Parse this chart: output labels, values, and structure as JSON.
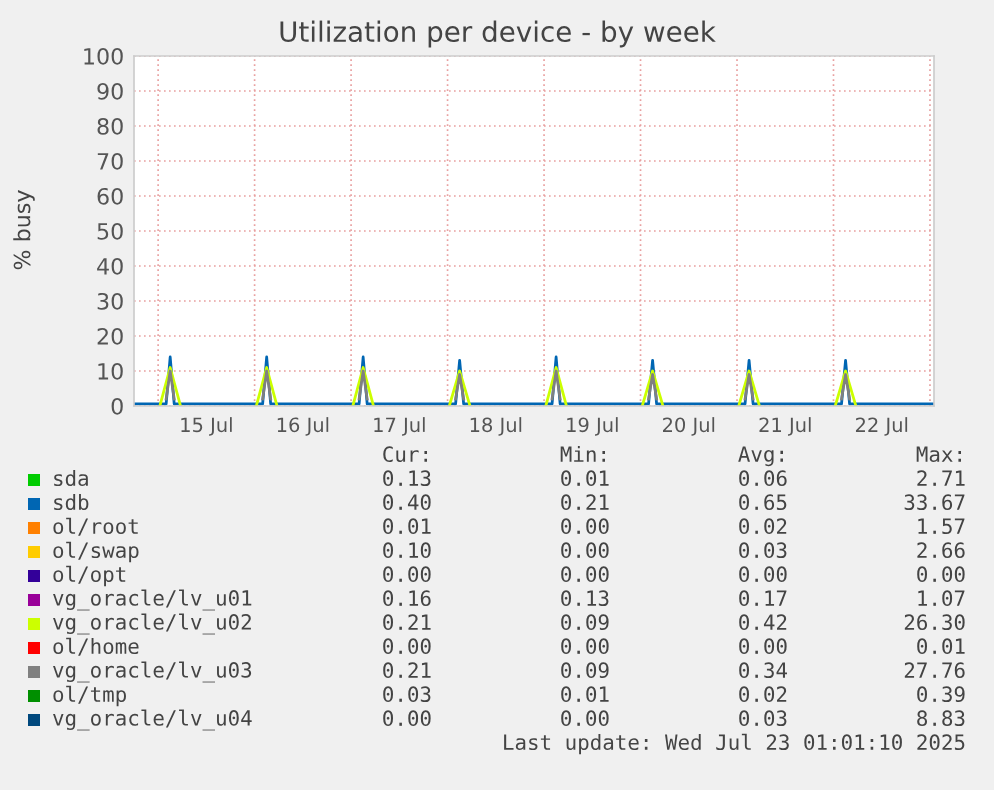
{
  "chart_data": {
    "type": "line",
    "title": "Utilization per device - by week",
    "ylabel": "% busy",
    "x": [
      "2025-07-14T18:00",
      "2025-07-15T02:00",
      "2025-07-15T03:00",
      "2025-07-15T04:00",
      "2025-07-16T02:00",
      "2025-07-16T03:00",
      "2025-07-16T04:00",
      "2025-07-17T02:00",
      "2025-07-17T03:00",
      "2025-07-17T04:00",
      "2025-07-18T02:00",
      "2025-07-18T03:00",
      "2025-07-18T04:00",
      "2025-07-19T02:00",
      "2025-07-19T03:00",
      "2025-07-19T04:00",
      "2025-07-20T02:00",
      "2025-07-20T03:00",
      "2025-07-20T04:00",
      "2025-07-21T02:00",
      "2025-07-21T03:00",
      "2025-07-21T04:00",
      "2025-07-22T02:00",
      "2025-07-22T03:00",
      "2025-07-22T04:00",
      "2025-07-23T01:00"
    ],
    "series": [
      {
        "name": "sda",
        "color": "#00cc00",
        "values": [
          null,
          null,
          null,
          null,
          null,
          null,
          null,
          null,
          null,
          null,
          null,
          null,
          null,
          null,
          null,
          null,
          null,
          null,
          null,
          null,
          null,
          null,
          null,
          null,
          null,
          null
        ]
      },
      {
        "name": "sdb",
        "color": "#0066b3",
        "values": [
          0.6,
          0.6,
          14,
          0.6,
          0.6,
          14,
          0.6,
          0.6,
          14,
          0.6,
          0.6,
          13,
          0.6,
          0.6,
          14,
          0.6,
          0.6,
          13,
          0.6,
          0.6,
          13,
          0.6,
          0.6,
          13,
          0.6,
          0.6
        ]
      },
      {
        "name": "ol/root",
        "color": "#ff8000",
        "values": [
          null,
          null,
          null,
          null,
          null,
          null,
          null,
          null,
          null,
          null,
          null,
          null,
          null,
          null,
          null,
          null,
          null,
          null,
          null,
          null,
          null,
          null,
          null,
          null,
          null,
          null
        ]
      },
      {
        "name": "ol/swap",
        "color": "#ffcc00",
        "values": [
          null,
          null,
          null,
          null,
          null,
          null,
          null,
          null,
          null,
          null,
          null,
          null,
          null,
          null,
          null,
          null,
          null,
          null,
          null,
          null,
          null,
          null,
          null,
          null,
          null,
          null
        ]
      },
      {
        "name": "ol/opt",
        "color": "#330099",
        "values": [
          null,
          null,
          null,
          null,
          null,
          null,
          null,
          null,
          null,
          null,
          null,
          null,
          null,
          null,
          null,
          null,
          null,
          null,
          null,
          null,
          null,
          null,
          null,
          null,
          null,
          null
        ]
      },
      {
        "name": "vg_oracle/lv_u01",
        "color": "#990099",
        "values": [
          null,
          null,
          null,
          null,
          null,
          null,
          null,
          null,
          null,
          null,
          null,
          null,
          null,
          null,
          null,
          null,
          null,
          null,
          null,
          null,
          null,
          null,
          null,
          null,
          null,
          null
        ]
      },
      {
        "name": "vg_oracle/lv_u02",
        "color": "#ccff00",
        "x": [
          "2025-07-15T00:30",
          "2025-07-15T03:00",
          "2025-07-15T05:30",
          "2025-07-15T12:00",
          "2025-07-16T00:30",
          "2025-07-16T03:00",
          "2025-07-16T05:30",
          "2025-07-16T12:00",
          "2025-07-17T00:30",
          "2025-07-17T03:00",
          "2025-07-17T05:30",
          "2025-07-17T12:00",
          "2025-07-18T00:30",
          "2025-07-18T03:00",
          "2025-07-18T05:30",
          "2025-07-18T12:00",
          "2025-07-19T00:30",
          "2025-07-19T03:00",
          "2025-07-19T05:30",
          "2025-07-19T12:00",
          "2025-07-20T00:30",
          "2025-07-20T03:00",
          "2025-07-20T05:30",
          "2025-07-20T12:00",
          "2025-07-21T00:30",
          "2025-07-21T03:00",
          "2025-07-21T05:30",
          "2025-07-21T12:00",
          "2025-07-22T00:30",
          "2025-07-22T03:00",
          "2025-07-22T05:30"
        ],
        "values": [
          0.3,
          11,
          0.3,
          null,
          0.3,
          11,
          0.3,
          null,
          0.3,
          11,
          0.3,
          null,
          0.3,
          10,
          0.3,
          null,
          0.3,
          11,
          0.3,
          null,
          0.3,
          10,
          0.3,
          null,
          0.3,
          10,
          0.3,
          null,
          0.3,
          10,
          0.3
        ]
      },
      {
        "name": "ol/home",
        "color": "#ff0000",
        "values": [
          null,
          null,
          null,
          null,
          null,
          null,
          null,
          null,
          null,
          null,
          null,
          null,
          null,
          null,
          null,
          null,
          null,
          null,
          null,
          null,
          null,
          null,
          null,
          null,
          null,
          null
        ]
      },
      {
        "name": "vg_oracle/lv_u03",
        "color": "#808080",
        "x": [
          "2025-07-15T02:00",
          "2025-07-15T03:00",
          "2025-07-15T04:00",
          "2025-07-15T12:00",
          "2025-07-16T02:00",
          "2025-07-16T03:00",
          "2025-07-16T04:00",
          "2025-07-16T12:00",
          "2025-07-17T02:00",
          "2025-07-17T03:00",
          "2025-07-17T04:00",
          "2025-07-17T12:00",
          "2025-07-18T02:00",
          "2025-07-18T03:00",
          "2025-07-18T04:00",
          "2025-07-18T12:00",
          "2025-07-19T02:00",
          "2025-07-19T03:00",
          "2025-07-19T04:00",
          "2025-07-19T12:00",
          "2025-07-20T02:00",
          "2025-07-20T03:00",
          "2025-07-20T04:00",
          "2025-07-20T12:00",
          "2025-07-21T02:00",
          "2025-07-21T03:00",
          "2025-07-21T04:00",
          "2025-07-21T12:00",
          "2025-07-22T02:00",
          "2025-07-22T03:00",
          "2025-07-22T04:00"
        ],
        "values": [
          2,
          10,
          2,
          null,
          2,
          10,
          2,
          null,
          2,
          10,
          2,
          null,
          2,
          9,
          2,
          null,
          2,
          10,
          2,
          null,
          2,
          9,
          2,
          null,
          2,
          9,
          2,
          null,
          2,
          9,
          2
        ]
      },
      {
        "name": "ol/tmp",
        "color": "#008f00",
        "values": [
          null,
          null,
          null,
          null,
          null,
          null,
          null,
          null,
          null,
          null,
          null,
          null,
          null,
          null,
          null,
          null,
          null,
          null,
          null,
          null,
          null,
          null,
          null,
          null,
          null,
          null
        ]
      },
      {
        "name": "vg_oracle/lv_u04",
        "color": "#00487d",
        "values": [
          null,
          null,
          null,
          null,
          null,
          null,
          null,
          null,
          null,
          null,
          null,
          null,
          null,
          null,
          null,
          null,
          null,
          null,
          null,
          null,
          null,
          null,
          null,
          null,
          null,
          null
        ]
      }
    ],
    "xlim": [
      "2025-07-14T18:00",
      "2025-07-23T01:00"
    ],
    "xticks": [
      {
        "value": "2025-07-15T00:00",
        "label": null
      },
      {
        "value": "2025-07-15T12:00",
        "label": "15 Jul"
      },
      {
        "value": "2025-07-16T00:00",
        "label": null
      },
      {
        "value": "2025-07-16T12:00",
        "label": "16 Jul"
      },
      {
        "value": "2025-07-17T00:00",
        "label": null
      },
      {
        "value": "2025-07-17T12:00",
        "label": "17 Jul"
      },
      {
        "value": "2025-07-18T00:00",
        "label": null
      },
      {
        "value": "2025-07-18T12:00",
        "label": "18 Jul"
      },
      {
        "value": "2025-07-19T00:00",
        "label": null
      },
      {
        "value": "2025-07-19T12:00",
        "label": "19 Jul"
      },
      {
        "value": "2025-07-20T00:00",
        "label": null
      },
      {
        "value": "2025-07-20T12:00",
        "label": "20 Jul"
      },
      {
        "value": "2025-07-21T00:00",
        "label": null
      },
      {
        "value": "2025-07-21T12:00",
        "label": "21 Jul"
      },
      {
        "value": "2025-07-22T00:00",
        "label": null
      },
      {
        "value": "2025-07-22T12:00",
        "label": "22 Jul"
      },
      {
        "value": "2025-07-23T00:00",
        "label": null
      }
    ],
    "ylim": [
      0,
      100
    ],
    "yticks": [
      0,
      10,
      20,
      30,
      40,
      50,
      60,
      70,
      80,
      90,
      100
    ],
    "grid": true,
    "legend": "bottom",
    "annotations": [
      "Cur:",
      "Min:",
      "Avg:",
      "Max:",
      "0.13",
      "0.01",
      "0.06",
      "2.71",
      "0.40",
      "0.21",
      "0.65",
      "33.67",
      "0.01",
      "0.00",
      "0.02",
      "1.57",
      "0.10",
      "0.00",
      "0.03",
      "2.66",
      "0.00",
      "0.00",
      "0.00",
      "0.00",
      "0.16",
      "0.13",
      "0.17",
      "1.07",
      "0.21",
      "0.09",
      "0.42",
      "26.30",
      "0.00",
      "0.00",
      "0.00",
      "0.01",
      "0.21",
      "0.09",
      "0.34",
      "27.76",
      "0.03",
      "0.01",
      "0.02",
      "0.39",
      "0.00",
      "0.00",
      "0.03",
      "8.83",
      "Last update: Wed Jul 23 01:01:10 2025"
    ]
  }
}
